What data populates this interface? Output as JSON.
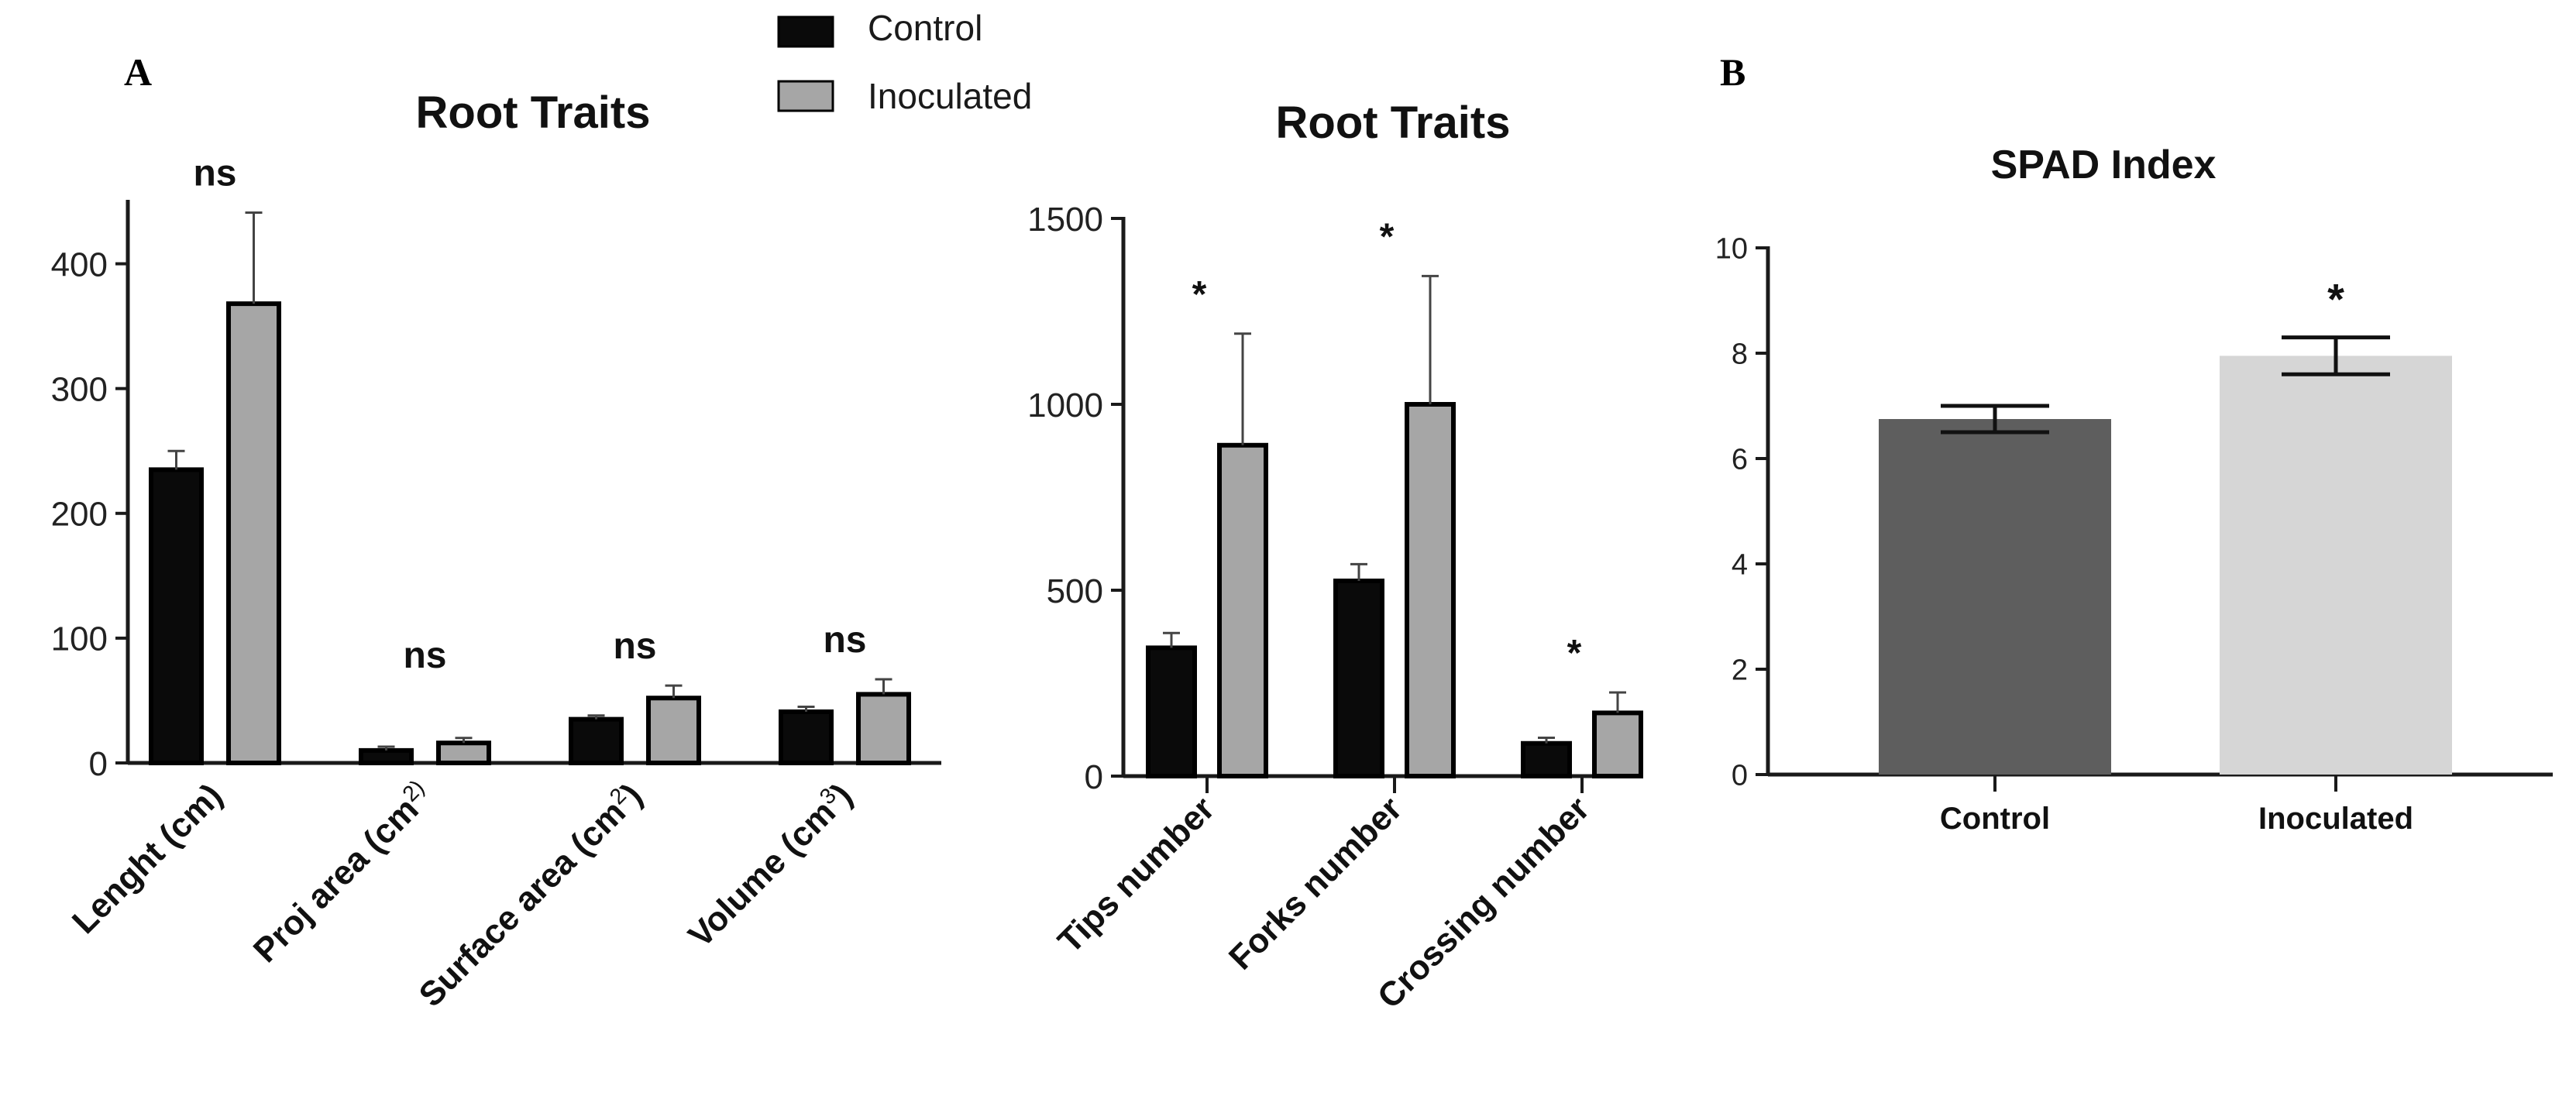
{
  "panel_labels": {
    "a": "A",
    "b": "B"
  },
  "legend": {
    "items": [
      {
        "label": "Control",
        "color": "#0a0a0a"
      },
      {
        "label": "Inoculated",
        "color": "#a6a6a6"
      }
    ]
  },
  "colors": {
    "control": "#0a0a0a",
    "inoculated": "#a6a6a6",
    "spad_control": "#5e5e5e",
    "spad_inoculated": "#d6d6d6",
    "axis": "#1a1a1a"
  },
  "chart_data": [
    {
      "id": "root-traits-1",
      "type": "bar",
      "title": "Root Traits",
      "xlabel": "",
      "ylabel": "",
      "ylim": [
        0,
        450
      ],
      "yticks": [
        0,
        100,
        200,
        300,
        400
      ],
      "categories": [
        {
          "base": "Lenght (cm)"
        },
        {
          "base": "Proj area (cm",
          "sup": "2)"
        },
        {
          "base": "Surface area (cm",
          "sup": "2",
          "tail": ")"
        },
        {
          "base": "Volume (cm",
          "sup": "3",
          "tail": ")"
        }
      ],
      "series": [
        {
          "name": "Control",
          "values": [
            235,
            10,
            35,
            41
          ],
          "errors": [
            15,
            3,
            3,
            4
          ]
        },
        {
          "name": "Inoculated",
          "values": [
            368,
            16,
            52,
            55
          ],
          "errors": [
            73,
            4,
            10,
            12
          ]
        }
      ],
      "annotations": [
        "ns",
        "ns",
        "ns",
        "ns"
      ],
      "legend_position": "top"
    },
    {
      "id": "root-traits-2",
      "type": "bar",
      "title": "Root Traits",
      "xlabel": "",
      "ylabel": "",
      "ylim": [
        0,
        1500
      ],
      "yticks": [
        0,
        500,
        1000,
        1500
      ],
      "categories": [
        {
          "base": "Tips number"
        },
        {
          "base": "Forks number"
        },
        {
          "base": "Crossing number"
        }
      ],
      "series": [
        {
          "name": "Control",
          "values": [
            345,
            525,
            88
          ],
          "errors": [
            40,
            45,
            15
          ]
        },
        {
          "name": "Inoculated",
          "values": [
            890,
            1000,
            170
          ],
          "errors": [
            300,
            345,
            55
          ]
        }
      ],
      "annotations": [
        "*",
        "*",
        "*"
      ]
    },
    {
      "id": "spad-index",
      "type": "bar",
      "title": "SPAD Index",
      "xlabel": "",
      "ylabel": "",
      "ylim": [
        0,
        10
      ],
      "yticks": [
        0,
        2,
        4,
        6,
        8,
        10
      ],
      "categories": [
        {
          "base": "Control"
        },
        {
          "base": "Inoculated"
        }
      ],
      "series": [
        {
          "name": "",
          "values": [
            6.75,
            7.95
          ],
          "errors": [
            0.25,
            0.35
          ]
        }
      ],
      "annotations": [
        "",
        "*"
      ]
    }
  ]
}
